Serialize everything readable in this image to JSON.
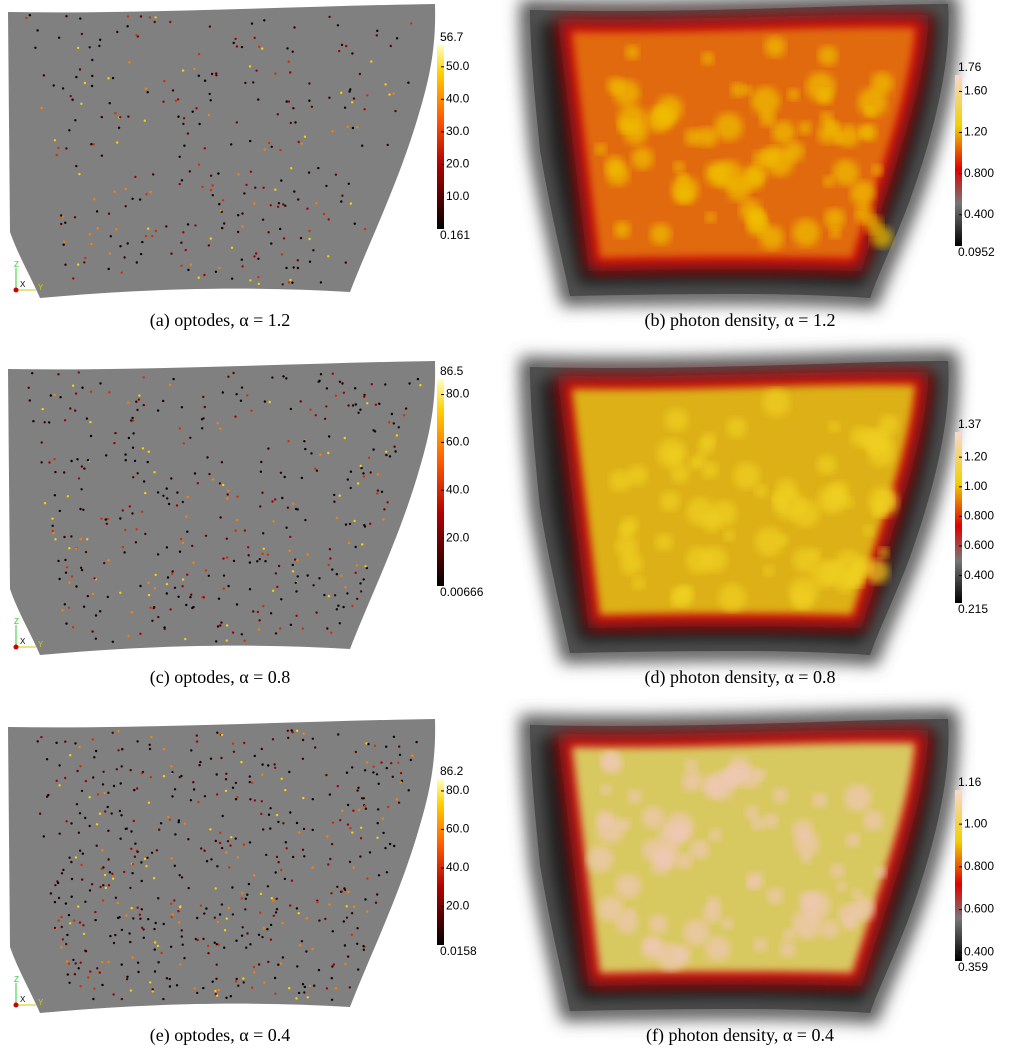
{
  "panels": [
    {
      "caption": "(a) optodes, α = 1.2",
      "colorbar": {
        "max": 56.7,
        "min": 0.161,
        "ticks": [
          {
            "value": 50,
            "label": "50.0"
          },
          {
            "value": 40,
            "label": "40.0"
          },
          {
            "value": 30,
            "label": "30.0"
          },
          {
            "value": 20,
            "label": "20.0"
          },
          {
            "value": 10,
            "label": "10.0"
          }
        ]
      }
    },
    {
      "caption": "(b) photon density, α = 1.2",
      "colorbar": {
        "max": 1.76,
        "min": 0.0952,
        "ticks": [
          {
            "value": 1.6,
            "label": "1.60"
          },
          {
            "value": 1.2,
            "label": "1.20"
          },
          {
            "value": 0.8,
            "label": "0.800"
          },
          {
            "value": 0.4,
            "label": "0.400"
          }
        ]
      }
    },
    {
      "caption": "(c) optodes, α = 0.8",
      "colorbar": {
        "max": 86.5,
        "min": 0.00666,
        "ticks": [
          {
            "value": 80,
            "label": "80.0"
          },
          {
            "value": 60,
            "label": "60.0"
          },
          {
            "value": 40,
            "label": "40.0"
          },
          {
            "value": 20,
            "label": "20.0"
          }
        ]
      }
    },
    {
      "caption": "(d) photon density, α = 0.8",
      "colorbar": {
        "max": 1.37,
        "min": 0.215,
        "ticks": [
          {
            "value": 1.2,
            "label": "1.20"
          },
          {
            "value": 1,
            "label": "1.00"
          },
          {
            "value": 0.8,
            "label": "0.800"
          },
          {
            "value": 0.6,
            "label": "0.600"
          },
          {
            "value": 0.4,
            "label": "0.400"
          }
        ]
      }
    },
    {
      "caption": "(e) optodes, α = 0.4",
      "colorbar": {
        "max": 86.2,
        "min": 0.0158,
        "ticks": [
          {
            "value": 80,
            "label": "80.0"
          },
          {
            "value": 60,
            "label": "60.0"
          },
          {
            "value": 40,
            "label": "40.0"
          },
          {
            "value": 20,
            "label": "20.0"
          }
        ]
      }
    },
    {
      "caption": "(f) photon density, α = 0.4",
      "colorbar": {
        "max": 1.16,
        "min": 0.359,
        "ticks": [
          {
            "value": 1,
            "label": "1.00"
          },
          {
            "value": 0.8,
            "label": "0.800"
          },
          {
            "value": 0.6,
            "label": "0.600"
          },
          {
            "value": 0.4,
            "label": "0.400"
          }
        ]
      }
    }
  ],
  "axes_labels": [
    "Z",
    "X",
    "Y"
  ]
}
